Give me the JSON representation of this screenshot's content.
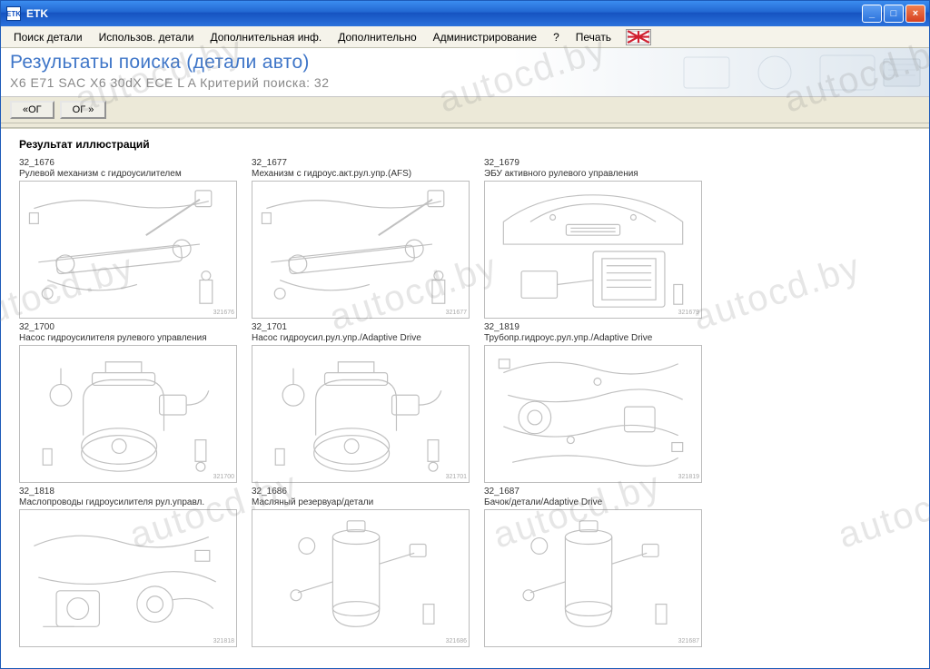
{
  "window": {
    "title": "ETK",
    "app_icon_text": "ETK"
  },
  "menu": {
    "items": [
      "Поиск детали",
      "Использов. детали",
      "Дополнительная инф.",
      "Дополнительно",
      "Администрирование",
      "?",
      "Печать"
    ]
  },
  "header": {
    "title": "Результаты поиска (детали авто)",
    "subtitle": "X6 E71 SAC X6 30dX ECE  L  A   Критерий поиска: 32"
  },
  "nav": {
    "back_label": "«ОГ",
    "fwd_label": "ОГ »"
  },
  "section_title": "Результат иллюстраций",
  "tiles": [
    {
      "code": "32_1676",
      "desc": "Рулевой механизм с гидроусилителем",
      "diagram": "steering_rack"
    },
    {
      "code": "32_1677",
      "desc": "Механизм с гидроус.акт.рул.упр.(AFS)",
      "diagram": "steering_rack"
    },
    {
      "code": "32_1679",
      "desc": "ЭБУ активного рулевого управления",
      "diagram": "ecu_car"
    },
    {
      "code": "32_1700",
      "desc": "Насос гидроусилителя рулевого управления",
      "diagram": "pump"
    },
    {
      "code": "32_1701",
      "desc": "Насос гидроусил.рул.упр./Adaptive Drive",
      "diagram": "pump"
    },
    {
      "code": "32_1819",
      "desc": "Трубопр.гидроус.рул.упр./Adaptive Drive",
      "diagram": "pipes"
    },
    {
      "code": "32_1818",
      "desc": "Маслопроводы гидроусилителя рул.управл.",
      "diagram": "pipes2"
    },
    {
      "code": "32_1686",
      "desc": "Масляный резервуар/детали",
      "diagram": "reservoir"
    },
    {
      "code": "32_1687",
      "desc": "Бачок/детали/Adaptive Drive",
      "diagram": "reservoir"
    }
  ],
  "watermark_text": "autocd.by",
  "colors": {
    "titlebar_start": "#3b8df0",
    "titlebar_end": "#1552c0",
    "header_title": "#3f76c8",
    "header_sub": "#888888",
    "thumb_border": "#bcbcbc",
    "diagram_stroke": "#c8c8c8"
  }
}
